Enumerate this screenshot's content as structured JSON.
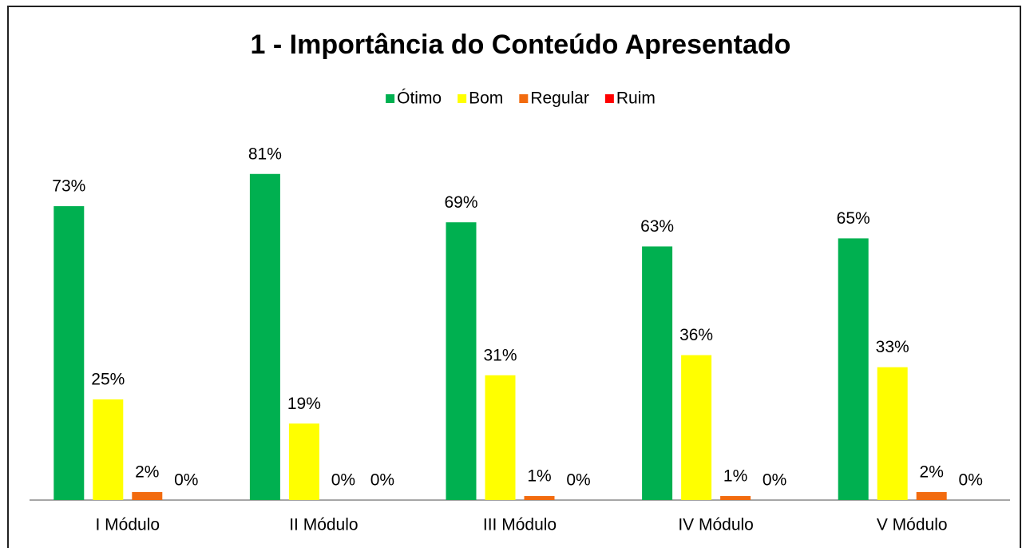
{
  "chart_data": {
    "type": "bar",
    "title": "1 - Importância do Conteúdo Apresentado",
    "categories": [
      "I Módulo",
      "II Módulo",
      "III Módulo",
      "IV Módulo",
      "V Módulo"
    ],
    "series": [
      {
        "name": "Ótimo",
        "color": "#00b050",
        "values": [
          73,
          81,
          69,
          63,
          65
        ],
        "value_labels": [
          "73%",
          "81%",
          "69%",
          "63%",
          "65%"
        ]
      },
      {
        "name": "Bom",
        "color": "#ffff00",
        "values": [
          25,
          19,
          31,
          36,
          33
        ],
        "value_labels": [
          "25%",
          "19%",
          "31%",
          "36%",
          "33%"
        ]
      },
      {
        "name": "Regular",
        "color": "#f26b0f",
        "values": [
          2,
          0,
          1,
          1,
          2
        ],
        "value_labels": [
          "2%",
          "0%",
          "1%",
          "1%",
          "2%"
        ]
      },
      {
        "name": "Ruim",
        "color": "#ff0000",
        "values": [
          0,
          0,
          0,
          0,
          0
        ],
        "value_labels": [
          "0%",
          "0%",
          "0%",
          "0%",
          "0%"
        ]
      }
    ],
    "legend": "top"
  }
}
